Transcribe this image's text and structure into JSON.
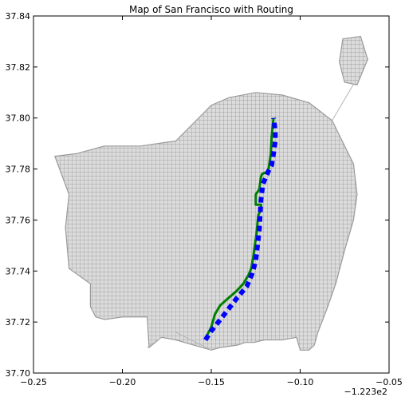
{
  "chart_data": {
    "type": "line",
    "title": "Map of San Francisco with Routing",
    "xlabel": "",
    "ylabel": "",
    "x_offset_label": "−1.223e2",
    "xlim": [
      -0.25,
      -0.05
    ],
    "ylim": [
      37.7,
      37.84
    ],
    "x_ticks": [
      -0.25,
      -0.2,
      -0.15,
      -0.1,
      -0.05
    ],
    "x_tick_labels": [
      "−0.25",
      "−0.20",
      "−0.15",
      "−0.10",
      "−0.05"
    ],
    "y_ticks": [
      37.7,
      37.72,
      37.74,
      37.76,
      37.78,
      37.8,
      37.82,
      37.84
    ],
    "y_tick_labels": [
      "37.70",
      "37.72",
      "37.74",
      "37.76",
      "37.78",
      "37.80",
      "37.82",
      "37.84"
    ],
    "grid": false,
    "colors": {
      "network_fill": "#d9d9d9",
      "network_edge": "#9a9a9a",
      "route_green": "#007f00",
      "route_blue": "#0000ff"
    },
    "series": [
      {
        "role": "street-network",
        "style": "gray-mesh",
        "outline_x": [
          -0.238,
          -0.226,
          -0.21,
          -0.19,
          -0.17,
          -0.15,
          -0.14,
          -0.125,
          -0.11,
          -0.095,
          -0.082,
          -0.07,
          -0.068,
          -0.07,
          -0.075,
          -0.08,
          -0.085,
          -0.09,
          -0.092,
          -0.095,
          -0.1,
          -0.102,
          -0.11,
          -0.12,
          -0.126,
          -0.131,
          -0.135,
          -0.145,
          -0.15,
          -0.16,
          -0.17,
          -0.178,
          -0.185,
          -0.186,
          -0.2,
          -0.21,
          -0.215,
          -0.218,
          -0.218,
          -0.23,
          -0.232,
          -0.23,
          -0.238
        ],
        "outline_y": [
          37.785,
          37.786,
          37.789,
          37.789,
          37.791,
          37.805,
          37.808,
          37.81,
          37.809,
          37.806,
          37.799,
          37.782,
          37.77,
          37.76,
          37.748,
          37.735,
          37.725,
          37.716,
          37.711,
          37.709,
          37.709,
          37.714,
          37.713,
          37.713,
          37.712,
          37.712,
          37.711,
          37.71,
          37.709,
          37.711,
          37.713,
          37.714,
          37.71,
          37.722,
          37.722,
          37.721,
          37.722,
          37.726,
          37.735,
          37.741,
          37.757,
          37.77,
          37.785
        ]
      },
      {
        "role": "route",
        "style": "solid",
        "color": "#007f00",
        "x": [
          -0.1533,
          -0.15,
          -0.148,
          -0.145,
          -0.141,
          -0.136,
          -0.132,
          -0.129,
          -0.1275,
          -0.1265,
          -0.1255,
          -0.1245,
          -0.124,
          -0.1235,
          -0.122,
          -0.122,
          -0.125,
          -0.125,
          -0.123,
          -0.122,
          -0.1215,
          -0.12,
          -0.118,
          -0.1165,
          -0.116,
          -0.115
        ],
        "y": [
          37.7135,
          37.718,
          37.723,
          37.7265,
          37.729,
          37.732,
          37.735,
          37.7385,
          37.741,
          37.745,
          37.75,
          37.755,
          37.759,
          37.762,
          37.764,
          37.766,
          37.766,
          37.77,
          37.772,
          37.777,
          37.778,
          37.7785,
          37.779,
          37.786,
          37.793,
          37.8
        ]
      },
      {
        "role": "route",
        "style": "dashed",
        "color": "#0000ff",
        "x": [
          -0.1533,
          -0.15,
          -0.146,
          -0.141,
          -0.136,
          -0.13,
          -0.127,
          -0.125,
          -0.124,
          -0.123,
          -0.1225,
          -0.122,
          -0.121,
          -0.118,
          -0.116,
          -0.115,
          -0.114,
          -0.114,
          -0.1145,
          -0.115
        ],
        "y": [
          37.713,
          37.7165,
          37.72,
          37.7245,
          37.729,
          37.734,
          37.739,
          37.744,
          37.75,
          37.756,
          37.762,
          37.768,
          37.774,
          37.779,
          37.7815,
          37.786,
          37.791,
          37.795,
          37.7975,
          37.8
        ]
      }
    ]
  }
}
